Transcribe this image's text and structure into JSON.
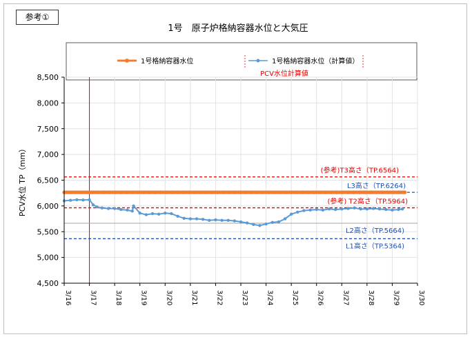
{
  "ref_label": "参考①",
  "chart_data": {
    "type": "line",
    "title": "1号　原子炉格納容器水位と大気圧",
    "xlabel": "",
    "ylabel": "PCV水位 TP（mm）",
    "ylim": [
      4500,
      8500
    ],
    "yticks": [
      4500,
      5000,
      5500,
      6000,
      6500,
      7000,
      7500,
      8000,
      8500
    ],
    "ytick_labels": [
      "4,500",
      "5,000",
      "5,500",
      "6,000",
      "6,500",
      "7,000",
      "7,500",
      "8,000",
      "8,500"
    ],
    "xlim": [
      3.16,
      3.3
    ],
    "xticks": [
      3.16,
      3.17,
      3.18,
      3.19,
      3.2,
      3.21,
      3.22,
      3.23,
      3.24,
      3.25,
      3.26,
      3.27,
      3.28,
      3.29,
      3.3
    ],
    "xtick_labels": [
      "3/16",
      "3/17",
      "3/18",
      "3/19",
      "3/20",
      "3/21",
      "3/22",
      "3/23",
      "3/24",
      "3/25",
      "3/26",
      "3/27",
      "3/28",
      "3/29",
      "3/30"
    ],
    "legend": {
      "placement": "top",
      "entries": [
        "1号格納容器水位",
        "1号格納容器水位（計算値）"
      ]
    },
    "vline": {
      "x": 3.17,
      "label": "PCV水位計算値",
      "color": "#e00000"
    },
    "series": [
      {
        "name": "1号格納容器水位",
        "color": "#f07d30",
        "x": [
          3.16,
          3.295
        ],
        "y": [
          6264,
          6264
        ]
      },
      {
        "name": "1号格納容器水位（計算値）",
        "color": "#5b9bd5",
        "x": [
          3.16,
          3.1625,
          3.165,
          3.1675,
          3.17,
          3.1715,
          3.173,
          3.175,
          3.1775,
          3.18,
          3.1825,
          3.185,
          3.187,
          3.1875,
          3.19,
          3.1925,
          3.195,
          3.1975,
          3.2,
          3.2025,
          3.205,
          3.2075,
          3.21,
          3.2125,
          3.215,
          3.2175,
          3.22,
          3.2225,
          3.225,
          3.2275,
          3.23,
          3.2325,
          3.235,
          3.2375,
          3.24,
          3.2425,
          3.245,
          3.2475,
          3.25,
          3.2525,
          3.255,
          3.2575,
          3.26,
          3.2625,
          3.265,
          3.2675,
          3.27,
          3.2725,
          3.275,
          3.2775,
          3.28,
          3.2825,
          3.285,
          3.2875,
          3.29,
          3.2925,
          3.294
        ],
        "y": [
          6100,
          6110,
          6120,
          6115,
          6120,
          6020,
          5980,
          5960,
          5950,
          5950,
          5930,
          5920,
          5900,
          6000,
          5860,
          5830,
          5850,
          5840,
          5860,
          5850,
          5800,
          5760,
          5750,
          5750,
          5740,
          5720,
          5730,
          5720,
          5720,
          5710,
          5690,
          5670,
          5640,
          5620,
          5650,
          5680,
          5690,
          5750,
          5840,
          5880,
          5910,
          5920,
          5930,
          5920,
          5940,
          5930,
          5940,
          5950,
          5960,
          5940,
          5940,
          5950,
          5940,
          5930,
          5920,
          5930,
          5940
        ]
      }
    ],
    "reference_lines": [
      {
        "label": "(参考)T3高さ（TP.6564)",
        "y": 6564,
        "color": "#e00000",
        "style": "dashed"
      },
      {
        "label": "L3高さ（TP.6264)",
        "y": 6264,
        "color": "#1f4fb4",
        "style": "dashed"
      },
      {
        "label": "(参考) T2高さ（TP.5964)",
        "y": 5964,
        "color": "#e00000",
        "style": "dashed"
      },
      {
        "label": "L2高さ（TP.5664)",
        "y": 5664,
        "color": "#a6a6a6",
        "style": "solid"
      },
      {
        "label": "L1高さ（TP.5364)",
        "y": 5364,
        "color": "#1f4fb4",
        "style": "dashed"
      }
    ]
  }
}
